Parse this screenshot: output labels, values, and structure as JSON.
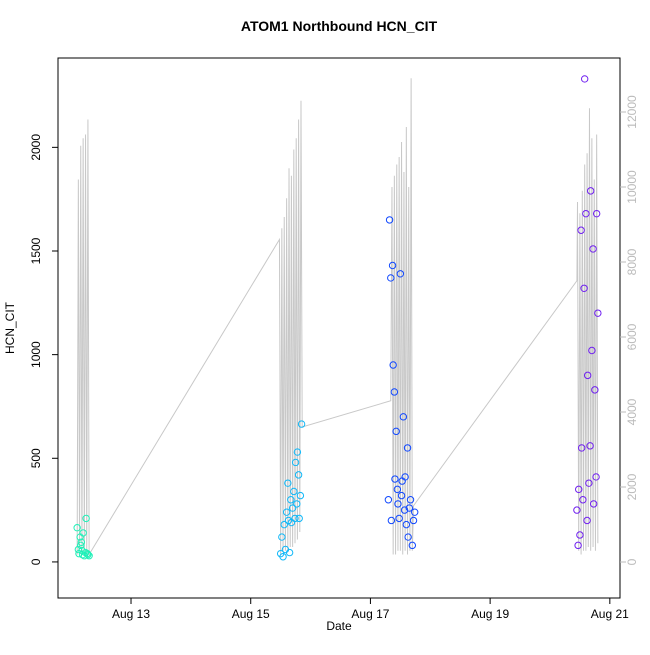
{
  "chart_data": {
    "type": "scatter",
    "title": "ATOM1 Northbound HCN_CIT",
    "x_label": "Date",
    "y_label": "HCN_CIT",
    "xlim": [
      11.78,
      21.17
    ],
    "xticks": [
      {
        "value": 13,
        "label": "Aug 13"
      },
      {
        "value": 15,
        "label": "Aug 15"
      },
      {
        "value": 17,
        "label": "Aug 17"
      },
      {
        "value": 19,
        "label": "Aug 19"
      },
      {
        "value": 21,
        "label": "Aug 21"
      }
    ],
    "ylim": [
      -174,
      2431
    ],
    "yticks": [
      0,
      500,
      1000,
      1500,
      2000
    ],
    "y2lim": [
      -960,
      13440
    ],
    "y2ticks": [
      0,
      2000,
      4000,
      6000,
      8000,
      10000,
      12000
    ],
    "series": [
      {
        "color": "#20f0b8",
        "x": [
          12.1,
          12.12,
          12.13,
          12.15,
          12.16,
          12.17,
          12.18,
          12.19,
          12.2,
          12.22,
          12.24,
          12.25,
          12.27,
          12.28,
          12.3
        ],
        "values": [
          165,
          60,
          40,
          120,
          80,
          95,
          55,
          35,
          140,
          30,
          45,
          210,
          40,
          35,
          30
        ]
      },
      {
        "color": "#10b8f8",
        "x": [
          15.5,
          15.52,
          15.54,
          15.56,
          15.58,
          15.6,
          15.62,
          15.63,
          15.65,
          15.67,
          15.68,
          15.7,
          15.72,
          15.74,
          15.75,
          15.77,
          15.78,
          15.8,
          15.81,
          15.83,
          15.85
        ],
        "values": [
          40,
          120,
          25,
          180,
          60,
          240,
          380,
          200,
          45,
          300,
          190,
          260,
          340,
          210,
          480,
          280,
          530,
          420,
          210,
          320,
          665
        ]
      },
      {
        "color": "#1048ff",
        "x": [
          17.3,
          17.32,
          17.34,
          17.35,
          17.37,
          17.38,
          17.4,
          17.41,
          17.43,
          17.45,
          17.46,
          17.48,
          17.5,
          17.52,
          17.53,
          17.55,
          17.57,
          17.58,
          17.6,
          17.62,
          17.63,
          17.65,
          17.67,
          17.7,
          17.72,
          17.74
        ],
        "values": [
          300,
          1650,
          1370,
          200,
          1430,
          950,
          820,
          400,
          630,
          350,
          280,
          210,
          1390,
          320,
          390,
          700,
          250,
          410,
          180,
          550,
          120,
          260,
          300,
          80,
          200,
          240
        ]
      },
      {
        "color": "#7020f0",
        "x": [
          20.45,
          20.47,
          20.48,
          20.5,
          20.52,
          20.53,
          20.55,
          20.57,
          20.58,
          20.6,
          20.62,
          20.63,
          20.65,
          20.67,
          20.68,
          20.7,
          20.72,
          20.73,
          20.75,
          20.77,
          20.78,
          20.8
        ],
        "values": [
          250,
          80,
          350,
          130,
          1600,
          550,
          300,
          1320,
          2330,
          1680,
          200,
          900,
          380,
          560,
          1790,
          1020,
          1510,
          280,
          830,
          410,
          1680,
          1200
        ]
      },
      {
        "color": "#c8c8c8",
        "axis": "y2",
        "line": true,
        "x": [
          12.1,
          12.12,
          12.14,
          12.16,
          12.18,
          12.2,
          12.22,
          12.24,
          12.26,
          12.28,
          12.3,
          15.48,
          15.5,
          15.52,
          15.54,
          15.56,
          15.58,
          15.6,
          15.62,
          15.64,
          15.66,
          15.68,
          15.7,
          15.72,
          15.74,
          15.76,
          15.78,
          15.8,
          15.82,
          15.84,
          15.86,
          17.34,
          17.36,
          17.38,
          17.4,
          17.42,
          17.44,
          17.46,
          17.48,
          17.5,
          17.52,
          17.54,
          17.56,
          17.58,
          17.6,
          17.62,
          17.64,
          17.66,
          17.68,
          17.7,
          17.72,
          20.45,
          20.46,
          20.48,
          20.5,
          20.52,
          20.54,
          20.56,
          20.58,
          20.6,
          20.62,
          20.64,
          20.66,
          20.68,
          20.7,
          20.72,
          20.74,
          20.76,
          20.78,
          20.8
        ],
        "values": [
          200,
          10200,
          300,
          11100,
          200,
          11300,
          300,
          11400,
          200,
          11800,
          200,
          8600,
          200,
          8900,
          300,
          9200,
          300,
          9700,
          300,
          10500,
          400,
          10300,
          400,
          11000,
          500,
          11300,
          600,
          11800,
          800,
          12300,
          3600,
          4300,
          10000,
          200,
          10300,
          200,
          10600,
          300,
          10800,
          300,
          11200,
          200,
          10400,
          300,
          11600,
          200,
          10000,
          300,
          12900,
          300,
          1500,
          7500,
          9600,
          300,
          9300,
          200,
          9900,
          300,
          10600,
          300,
          10900,
          400,
          12100,
          300,
          11300,
          400,
          10200,
          300,
          11400,
          500
        ]
      }
    ]
  }
}
